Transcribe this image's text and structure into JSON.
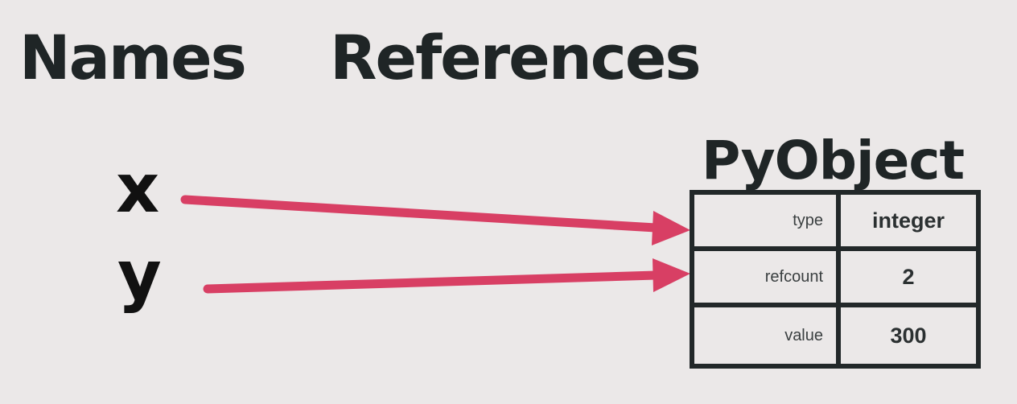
{
  "headings": {
    "names": "Names",
    "references": "References"
  },
  "variables": [
    "x",
    "y"
  ],
  "object": {
    "title": "PyObject",
    "rows": [
      {
        "label": "type",
        "value": "integer"
      },
      {
        "label": "refcount",
        "value": "2"
      },
      {
        "label": "value",
        "value": "300"
      }
    ]
  },
  "colors": {
    "arrow": "#d83f64",
    "text": "#1f2526",
    "background": "#ebe8e8"
  }
}
